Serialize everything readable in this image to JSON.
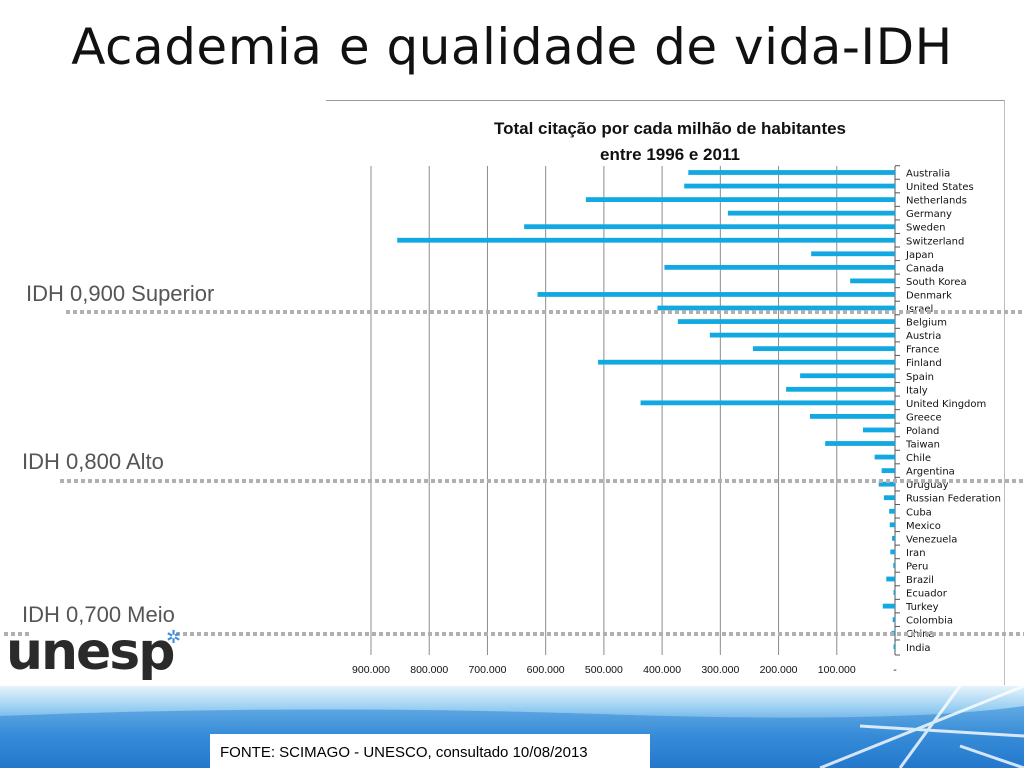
{
  "slide": {
    "title": "Academia e qualidade de vida-IDH",
    "source": "FONTE: SCIMAGO - UNESCO, consultado 10/08/2013",
    "logo_text": "unesp",
    "idh_labels": [
      "IDH 0,900 Superior",
      "IDH 0,800 Alto",
      "IDH 0,700 Meio"
    ]
  },
  "colors": {
    "bar": "#12a9e2",
    "grid": "#8c8c8c",
    "dotted": "#b0b0b0",
    "footer_top": "#7fc3ee",
    "footer_bottom": "#1a73c9"
  },
  "chart_data": {
    "type": "bar",
    "orientation": "horizontal",
    "title": "Total citação por cada milhão de habitantes",
    "subtitle": "entre 1996 e 2011",
    "xlim": [
      0,
      900000
    ],
    "x_reversed": true,
    "grid": true,
    "xtick_values": [
      900000,
      800000,
      700000,
      600000,
      500000,
      400000,
      300000,
      200000,
      100000,
      0
    ],
    "xtick_labels": [
      "900.000",
      "800.000",
      "700.000",
      "600.000",
      "500.000",
      "400.000",
      "300.000",
      "200.000",
      "100.000",
      "-"
    ],
    "categories": [
      "Australia",
      "United States",
      "Netherlands",
      "Germany",
      "Sweden",
      "Switzerland",
      "Japan",
      "Canada",
      "South Korea",
      "Denmark",
      "Israel",
      "Belgium",
      "Austria",
      "France",
      "Finland",
      "Spain",
      "Italy",
      "United Kingdom",
      "Greece",
      "Poland",
      "Taiwan",
      "Chile",
      "Argentina",
      "Uruguay",
      "Russian Federation",
      "Cuba",
      "Mexico",
      "Venezuela",
      "Iran",
      "Peru",
      "Brazil",
      "Ecuador",
      "Turkey",
      "Colombia",
      "China",
      "India"
    ],
    "values": [
      355000,
      362000,
      531000,
      287000,
      637000,
      855000,
      144000,
      396000,
      77000,
      614000,
      408000,
      373000,
      318000,
      244000,
      510000,
      163000,
      187000,
      437000,
      146000,
      55000,
      120000,
      35000,
      23000,
      28000,
      19000,
      10000,
      9000,
      5000,
      8000,
      3000,
      15000,
      2000,
      21000,
      4000,
      6000,
      2000
    ]
  }
}
